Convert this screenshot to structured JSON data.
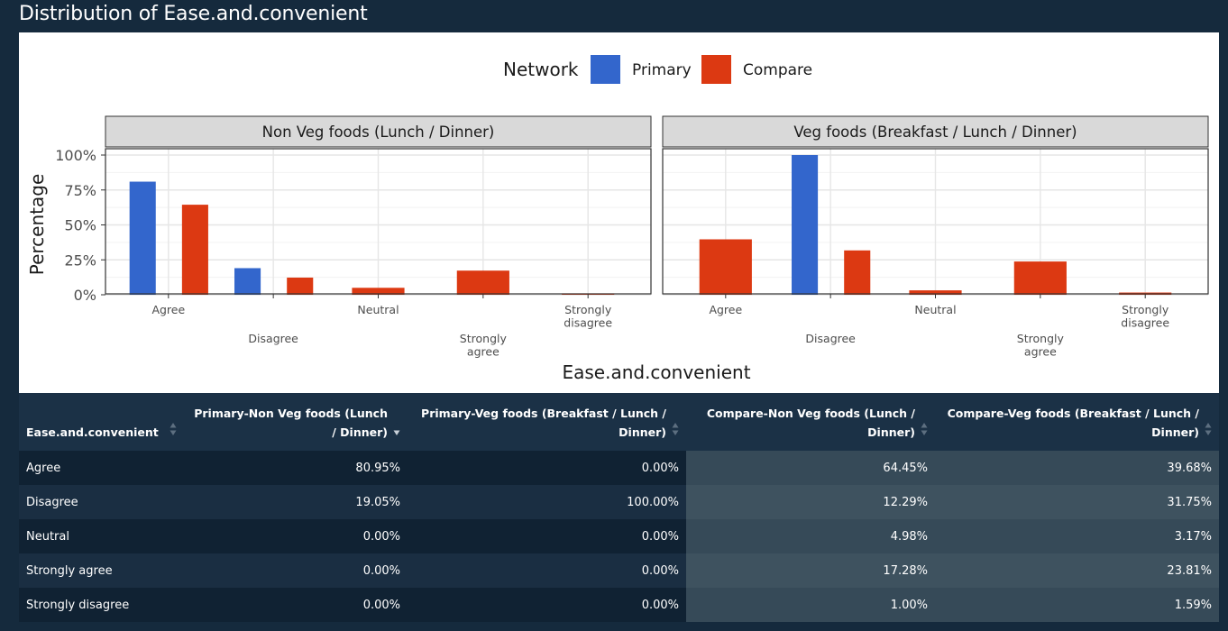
{
  "page_title": "Distribution of Ease.and.convenient",
  "colors": {
    "primary": "#3366cc",
    "compare": "#dc3912",
    "background": "#152a3d"
  },
  "chart_data": {
    "type": "bar",
    "legend": {
      "title": "Network",
      "placement": "top",
      "entries": [
        "Primary",
        "Compare"
      ]
    },
    "xlabel": "Ease.and.convenient",
    "ylabel": "Percentage",
    "ylim": [
      0,
      100
    ],
    "y_ticks": [
      "0%",
      "25%",
      "50%",
      "75%",
      "100%"
    ],
    "categories": [
      "Agree",
      "Disagree",
      "Neutral",
      "Strongly agree",
      "Strongly disagree"
    ],
    "facets": [
      {
        "title": "Non Veg foods (Lunch / Dinner)",
        "series": [
          {
            "name": "Primary",
            "values": [
              80.95,
              19.05,
              0,
              0,
              0
            ]
          },
          {
            "name": "Compare",
            "values": [
              64.45,
              12.29,
              4.98,
              17.28,
              1.0
            ]
          }
        ]
      },
      {
        "title": "Veg foods (Breakfast / Lunch / Dinner)",
        "series": [
          {
            "name": "Primary",
            "values": [
              0,
              100,
              0,
              0,
              0
            ]
          },
          {
            "name": "Compare",
            "values": [
              39.68,
              31.75,
              3.17,
              23.81,
              1.59
            ]
          }
        ]
      }
    ]
  },
  "table": {
    "headers": [
      "Ease.and.convenient",
      "Primary-Non Veg foods (Lunch / Dinner)",
      "Primary-Veg foods (Breakfast / Lunch / Dinner)",
      "Compare-Non Veg foods (Lunch / Dinner)",
      "Compare-Veg foods (Breakfast / Lunch / Dinner)"
    ],
    "rows": [
      [
        "Agree",
        "80.95%",
        "0.00%",
        "64.45%",
        "39.68%"
      ],
      [
        "Disagree",
        "19.05%",
        "100.00%",
        "12.29%",
        "31.75%"
      ],
      [
        "Neutral",
        "0.00%",
        "0.00%",
        "4.98%",
        "3.17%"
      ],
      [
        "Strongly agree",
        "0.00%",
        "0.00%",
        "17.28%",
        "23.81%"
      ],
      [
        "Strongly disagree",
        "0.00%",
        "0.00%",
        "1.00%",
        "1.59%"
      ]
    ]
  }
}
